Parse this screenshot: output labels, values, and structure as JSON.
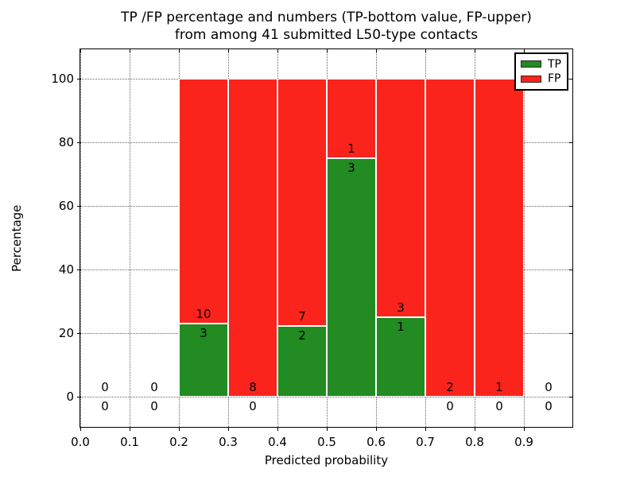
{
  "chart_data": {
    "type": "bar",
    "stacked": true,
    "normalized_to_percent": true,
    "title_line1": "TP /FP percentage and numbers (TP-bottom value, FP-upper)",
    "title_line2": "from among 41 submitted L50-type contacts",
    "xlabel": "Predicted probability",
    "ylabel": "Percentage",
    "xlim": [
      0.0,
      1.0
    ],
    "ylim": [
      -10,
      110
    ],
    "grid": true,
    "xticks": [
      "0.0",
      "0.1",
      "0.2",
      "0.3",
      "0.4",
      "0.5",
      "0.6",
      "0.7",
      "0.8",
      "0.9"
    ],
    "yticks": [
      "0",
      "20",
      "40",
      "60",
      "80",
      "100"
    ],
    "legend": {
      "position": "upper right",
      "entries": [
        {
          "label": "TP",
          "color": "#228b22"
        },
        {
          "label": "FP",
          "color": "#fa241c"
        }
      ]
    },
    "tp_color": "#228b22",
    "fp_color": "#fa241c",
    "bins": [
      {
        "range": [
          0.0,
          0.1
        ],
        "tp": 0,
        "fp": 0
      },
      {
        "range": [
          0.1,
          0.2
        ],
        "tp": 0,
        "fp": 0
      },
      {
        "range": [
          0.2,
          0.3
        ],
        "tp": 3,
        "fp": 10
      },
      {
        "range": [
          0.3,
          0.4
        ],
        "tp": 0,
        "fp": 8
      },
      {
        "range": [
          0.4,
          0.5
        ],
        "tp": 2,
        "fp": 7
      },
      {
        "range": [
          0.5,
          0.6
        ],
        "tp": 3,
        "fp": 1
      },
      {
        "range": [
          0.6,
          0.7
        ],
        "tp": 1,
        "fp": 3
      },
      {
        "range": [
          0.7,
          0.8
        ],
        "tp": 0,
        "fp": 2
      },
      {
        "range": [
          0.8,
          0.9
        ],
        "tp": 0,
        "fp": 1
      },
      {
        "range": [
          0.9,
          1.0
        ],
        "tp": 0,
        "fp": 0
      }
    ]
  }
}
